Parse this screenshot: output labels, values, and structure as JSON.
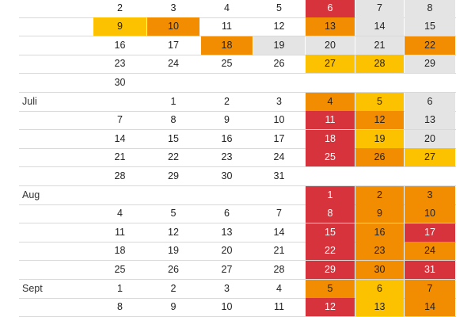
{
  "palette": {
    "gray": "#e4e4e4",
    "yellow": "#fcc200",
    "orange": "#f28c00",
    "red": "#d6333c"
  },
  "rows": [
    {
      "month": "",
      "cells": [
        {
          "day": "2"
        },
        {
          "day": "3"
        },
        {
          "day": "4"
        },
        {
          "day": "5"
        },
        {
          "day": "6",
          "shade": "red"
        },
        {
          "day": "7",
          "shade": "gray"
        },
        {
          "day": "8",
          "shade": "gray"
        }
      ]
    },
    {
      "month": "",
      "cells": [
        {
          "day": "9",
          "shade": "yellow"
        },
        {
          "day": "10",
          "shade": "orange"
        },
        {
          "day": "11"
        },
        {
          "day": "12"
        },
        {
          "day": "13",
          "shade": "orange"
        },
        {
          "day": "14",
          "shade": "gray"
        },
        {
          "day": "15",
          "shade": "gray"
        }
      ]
    },
    {
      "month": "",
      "cells": [
        {
          "day": "16"
        },
        {
          "day": "17"
        },
        {
          "day": "18",
          "shade": "orange"
        },
        {
          "day": "19",
          "shade": "gray"
        },
        {
          "day": "20",
          "shade": "gray"
        },
        {
          "day": "21",
          "shade": "gray"
        },
        {
          "day": "22",
          "shade": "orange"
        }
      ]
    },
    {
      "month": "",
      "cells": [
        {
          "day": "23"
        },
        {
          "day": "24"
        },
        {
          "day": "25"
        },
        {
          "day": "26"
        },
        {
          "day": "27",
          "shade": "yellow"
        },
        {
          "day": "28",
          "shade": "yellow"
        },
        {
          "day": "29",
          "shade": "gray"
        }
      ]
    },
    {
      "month": "",
      "cells": [
        {
          "day": "30"
        },
        {
          "day": ""
        },
        {
          "day": ""
        },
        {
          "day": ""
        },
        {
          "day": ""
        },
        {
          "day": ""
        },
        {
          "day": ""
        }
      ]
    },
    {
      "month": "Juli",
      "cells": [
        {
          "day": ""
        },
        {
          "day": "1"
        },
        {
          "day": "2"
        },
        {
          "day": "3"
        },
        {
          "day": "4",
          "shade": "orange"
        },
        {
          "day": "5",
          "shade": "yellow"
        },
        {
          "day": "6",
          "shade": "gray"
        }
      ]
    },
    {
      "month": "",
      "cells": [
        {
          "day": "7"
        },
        {
          "day": "8"
        },
        {
          "day": "9"
        },
        {
          "day": "10"
        },
        {
          "day": "11",
          "shade": "red"
        },
        {
          "day": "12",
          "shade": "orange"
        },
        {
          "day": "13",
          "shade": "gray"
        }
      ]
    },
    {
      "month": "",
      "cells": [
        {
          "day": "14"
        },
        {
          "day": "15"
        },
        {
          "day": "16"
        },
        {
          "day": "17"
        },
        {
          "day": "18",
          "shade": "red"
        },
        {
          "day": "19",
          "shade": "yellow"
        },
        {
          "day": "20",
          "shade": "gray"
        }
      ]
    },
    {
      "month": "",
      "cells": [
        {
          "day": "21"
        },
        {
          "day": "22"
        },
        {
          "day": "23"
        },
        {
          "day": "24"
        },
        {
          "day": "25",
          "shade": "red"
        },
        {
          "day": "26",
          "shade": "orange"
        },
        {
          "day": "27",
          "shade": "yellow"
        }
      ]
    },
    {
      "month": "",
      "cells": [
        {
          "day": "28"
        },
        {
          "day": "29"
        },
        {
          "day": "30"
        },
        {
          "day": "31"
        },
        {
          "day": ""
        },
        {
          "day": ""
        },
        {
          "day": ""
        }
      ]
    },
    {
      "month": "Aug",
      "cells": [
        {
          "day": ""
        },
        {
          "day": ""
        },
        {
          "day": ""
        },
        {
          "day": ""
        },
        {
          "day": "1",
          "shade": "red"
        },
        {
          "day": "2",
          "shade": "orange"
        },
        {
          "day": "3",
          "shade": "orange"
        }
      ]
    },
    {
      "month": "",
      "cells": [
        {
          "day": "4"
        },
        {
          "day": "5"
        },
        {
          "day": "6"
        },
        {
          "day": "7"
        },
        {
          "day": "8",
          "shade": "red"
        },
        {
          "day": "9",
          "shade": "orange"
        },
        {
          "day": "10",
          "shade": "orange"
        }
      ]
    },
    {
      "month": "",
      "cells": [
        {
          "day": "11"
        },
        {
          "day": "12"
        },
        {
          "day": "13"
        },
        {
          "day": "14"
        },
        {
          "day": "15",
          "shade": "red"
        },
        {
          "day": "16",
          "shade": "orange"
        },
        {
          "day": "17",
          "shade": "red"
        }
      ]
    },
    {
      "month": "",
      "cells": [
        {
          "day": "18"
        },
        {
          "day": "19"
        },
        {
          "day": "20"
        },
        {
          "day": "21"
        },
        {
          "day": "22",
          "shade": "red"
        },
        {
          "day": "23",
          "shade": "orange"
        },
        {
          "day": "24",
          "shade": "orange"
        }
      ]
    },
    {
      "month": "",
      "cells": [
        {
          "day": "25"
        },
        {
          "day": "26"
        },
        {
          "day": "27"
        },
        {
          "day": "28"
        },
        {
          "day": "29",
          "shade": "red"
        },
        {
          "day": "30",
          "shade": "orange"
        },
        {
          "day": "31",
          "shade": "red"
        }
      ]
    },
    {
      "month": "Sept",
      "cells": [
        {
          "day": "1"
        },
        {
          "day": "2"
        },
        {
          "day": "3"
        },
        {
          "day": "4"
        },
        {
          "day": "5",
          "shade": "orange"
        },
        {
          "day": "6",
          "shade": "yellow"
        },
        {
          "day": "7",
          "shade": "orange"
        }
      ]
    },
    {
      "month": "",
      "cells": [
        {
          "day": "8"
        },
        {
          "day": "9"
        },
        {
          "day": "10"
        },
        {
          "day": "11"
        },
        {
          "day": "12",
          "shade": "red"
        },
        {
          "day": "13",
          "shade": "yellow"
        },
        {
          "day": "14",
          "shade": "orange"
        }
      ]
    }
  ]
}
